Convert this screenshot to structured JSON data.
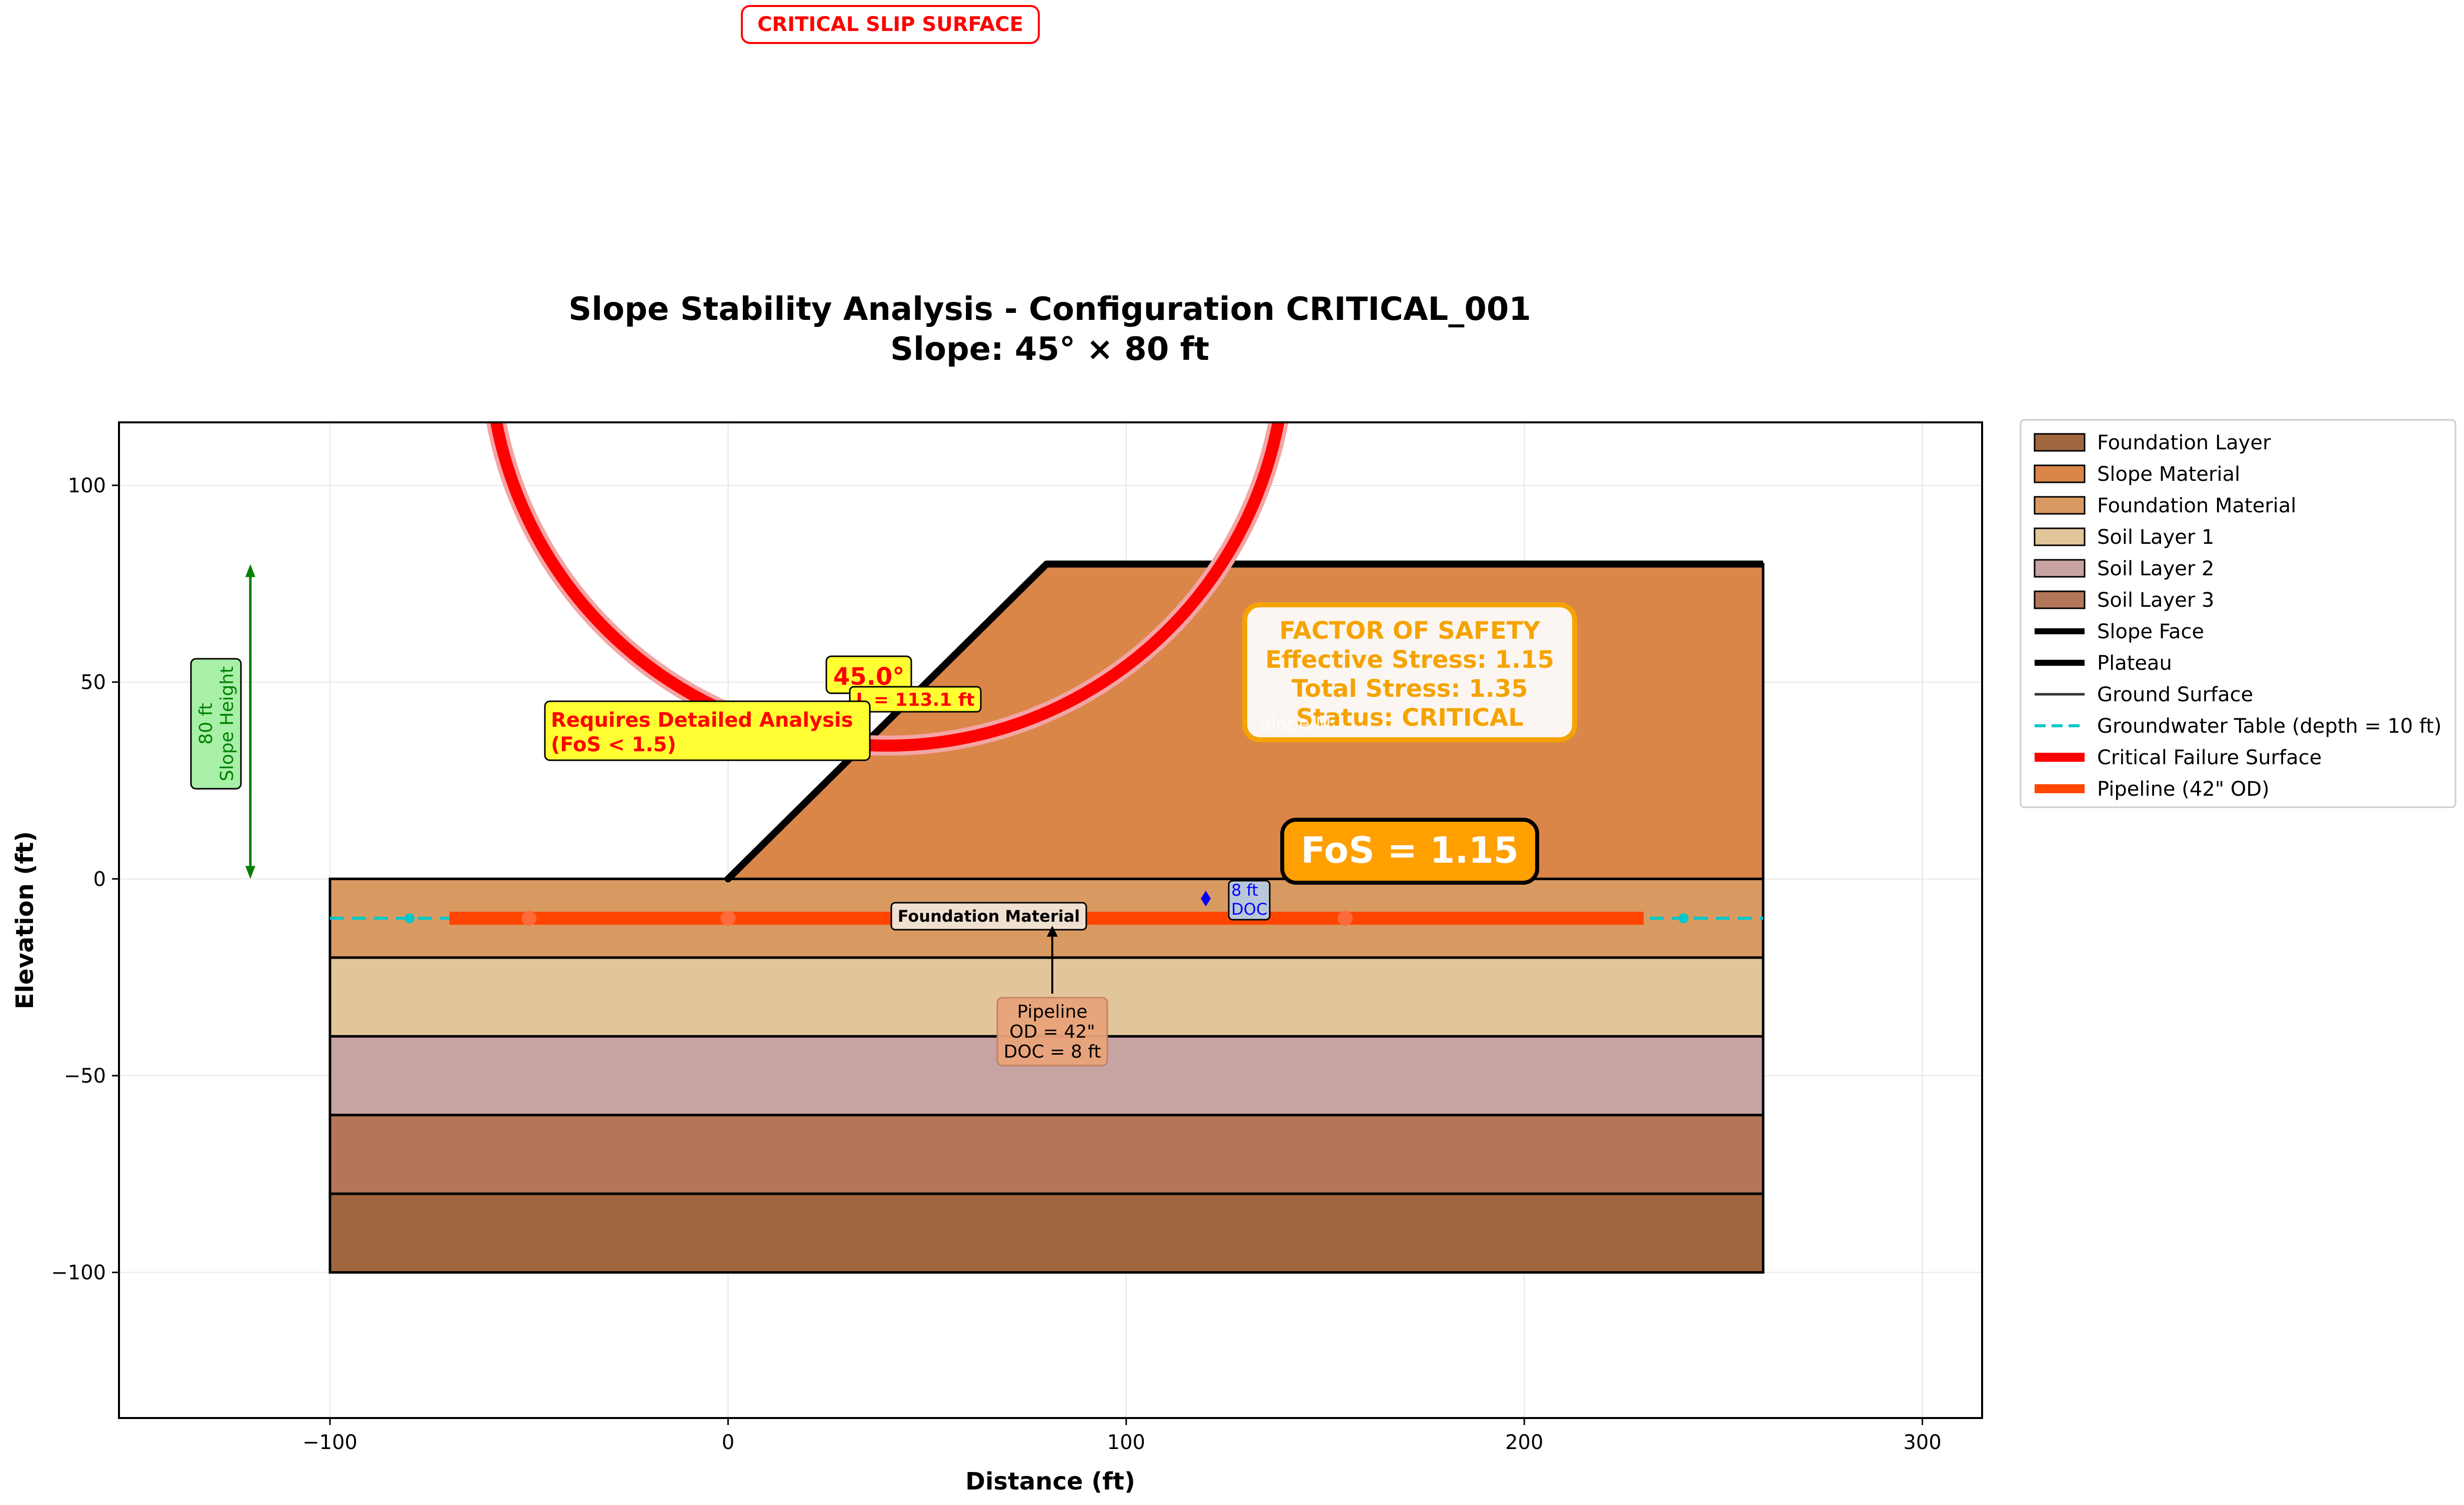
{
  "chart_data": {
    "type": "area",
    "title_line1": "Slope Stability Analysis - Configuration CRITICAL_001",
    "title_line2": "Slope: 45° × 80 ft",
    "xlabel": "Distance (ft)",
    "ylabel": "Elevation (ft)",
    "xlim": [
      -153,
      315
    ],
    "ylim": [
      -137,
      116
    ],
    "x_ticks": [
      -100,
      0,
      100,
      200,
      300
    ],
    "x_tick_labels": [
      "−100",
      "0",
      "100",
      "200",
      "300"
    ],
    "y_ticks": [
      -100,
      -50,
      0,
      50,
      100
    ],
    "y_tick_labels": [
      "−100",
      "−50",
      "0",
      "50",
      "100"
    ],
    "grid": true,
    "legend_placement": "outside-top-right",
    "layers": [
      {
        "name": "Foundation Layer",
        "x": [
          -100,
          260
        ],
        "top": -80,
        "bottom": -100,
        "color": "#a0673f"
      },
      {
        "name": "Soil Layer 3",
        "x": [
          -100,
          260
        ],
        "top": -60,
        "bottom": -80,
        "color": "#b3765a"
      },
      {
        "name": "Soil Layer 2",
        "x": [
          -100,
          260
        ],
        "top": -40,
        "bottom": -60,
        "color": "#c8a3a3"
      },
      {
        "name": "Soil Layer 1",
        "x": [
          -100,
          260
        ],
        "top": -20,
        "bottom": -40,
        "color": "#e3c59c"
      },
      {
        "name": "Foundation Material",
        "x": [
          -100,
          260
        ],
        "top": 0,
        "bottom": -20,
        "color": "#d99a62"
      }
    ],
    "slope_material": {
      "name": "Slope Material",
      "polygon": [
        [
          0,
          0
        ],
        [
          80,
          80
        ],
        [
          260,
          80
        ],
        [
          260,
          0
        ]
      ],
      "color": "#db8649"
    },
    "slope_face": {
      "name": "Slope Face",
      "x": [
        0,
        80
      ],
      "y": [
        0,
        80
      ]
    },
    "plateau": {
      "name": "Plateau",
      "x": [
        80,
        260
      ],
      "y": [
        80,
        80
      ]
    },
    "ground_surface": {
      "name": "Ground Surface",
      "x": [
        -100,
        260
      ],
      "y": [
        0,
        0
      ]
    },
    "groundwater": {
      "name": "Groundwater Table (depth = 10 ft)",
      "x": [
        -100,
        260
      ],
      "y": -10,
      "color": "#00c8c8",
      "markers_x": [
        -80,
        240
      ]
    },
    "pipeline": {
      "name": "Pipeline (42\" OD)",
      "x": [
        -70,
        230
      ],
      "y": -10,
      "color": "#ff4500",
      "markers_x": [
        -50,
        0,
        155
      ]
    },
    "failure_circle": {
      "name": "Critical Failure Surface",
      "center": [
        40,
        135
      ],
      "radius": 100,
      "color": "#ff0000"
    },
    "slope_height_arrow": {
      "x": -120,
      "y": [
        0,
        80
      ],
      "label_line1": "80 ft",
      "label_line2": "Slope Height"
    },
    "doc_marker": {
      "x": 120,
      "y": [
        -7,
        -3
      ],
      "label_line1": "8 ft",
      "label_line2": "DOC"
    },
    "legend": [
      {
        "label": "Foundation Layer",
        "kind": "patch",
        "color": "#a0673f"
      },
      {
        "label": "Slope Material",
        "kind": "patch",
        "color": "#db8649"
      },
      {
        "label": "Foundation Material",
        "kind": "patch",
        "color": "#d99a62"
      },
      {
        "label": "Soil Layer 1",
        "kind": "patch",
        "color": "#e3c59c"
      },
      {
        "label": "Soil Layer 2",
        "kind": "patch",
        "color": "#c8a3a3"
      },
      {
        "label": "Soil Layer 3",
        "kind": "patch",
        "color": "#b3765a"
      },
      {
        "label": "Slope Face",
        "kind": "line",
        "color": "#000000"
      },
      {
        "label": "Plateau",
        "kind": "line",
        "color": "#000000"
      },
      {
        "label": "Ground Surface",
        "kind": "thinline",
        "color": "#333333"
      },
      {
        "label": "Groundwater Table (depth = 10 ft)",
        "kind": "dash",
        "color": "#00c8c8"
      },
      {
        "label": "Critical Failure Surface",
        "kind": "thickline",
        "color": "#ff0000"
      },
      {
        "label": "Pipeline (42\" OD)",
        "kind": "thickline",
        "color": "#ff4500"
      }
    ],
    "annotations": {
      "critical_slip": "CRITICAL SLIP SURFACE",
      "angle": "45.0°",
      "length": "L = 113.1 ft",
      "detailed_line1": "Requires Detailed Analysis",
      "detailed_line2": "(FoS < 1.5)",
      "fos_title": "FACTOR OF SAFETY",
      "fos_effective": "Effective Stress: 1.15",
      "fos_total": "Total Stress: 1.35",
      "fos_status": "Status: CRITICAL",
      "fos_big": "FoS = 1.15",
      "foundation_material": "Foundation Material",
      "pipeline_line1": "Pipeline",
      "pipeline_line2": "OD = 42\"",
      "pipeline_line3": "DOC = 8 ft",
      "slope_material_partial": "Slope M"
    }
  }
}
